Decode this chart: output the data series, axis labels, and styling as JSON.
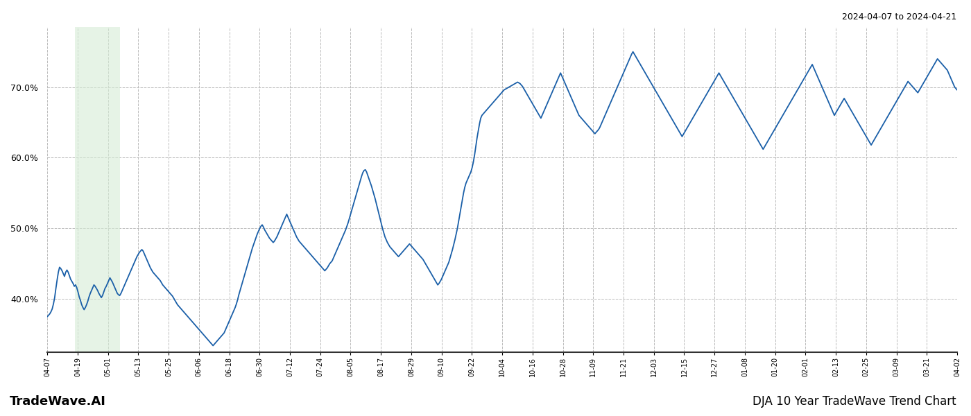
{
  "title_top_right": "2024-04-07 to 2024-04-21",
  "title_bottom_right": "DJA 10 Year TradeWave Trend Chart",
  "title_bottom_left": "TradeWave.AI",
  "line_color": "#1a5fa8",
  "line_width": 1.3,
  "bg_color": "#ffffff",
  "grid_color": "#bbbbbb",
  "grid_linestyle": "--",
  "shade_color": "#d6ecd6",
  "shade_alpha": 0.6,
  "shade_x_start_label": "04-13",
  "shade_x_end_label": "04-25",
  "ylim_min": 0.325,
  "ylim_max": 0.785,
  "yticks": [
    0.4,
    0.5,
    0.6,
    0.7
  ],
  "xtick_labels": [
    "04-07",
    "04-19",
    "05-01",
    "05-13",
    "05-25",
    "06-06",
    "06-18",
    "06-30",
    "07-12",
    "07-24",
    "08-05",
    "08-17",
    "08-29",
    "09-10",
    "09-22",
    "10-04",
    "10-16",
    "10-28",
    "11-09",
    "11-21",
    "12-03",
    "12-15",
    "12-27",
    "01-08",
    "01-20",
    "02-01",
    "02-13",
    "02-25",
    "03-09",
    "03-21",
    "04-02"
  ],
  "y_values": [
    0.375,
    0.377,
    0.379,
    0.382,
    0.386,
    0.393,
    0.402,
    0.415,
    0.427,
    0.438,
    0.445,
    0.443,
    0.44,
    0.436,
    0.432,
    0.438,
    0.441,
    0.438,
    0.433,
    0.428,
    0.425,
    0.422,
    0.418,
    0.42,
    0.416,
    0.41,
    0.403,
    0.398,
    0.392,
    0.388,
    0.385,
    0.388,
    0.392,
    0.397,
    0.403,
    0.408,
    0.412,
    0.416,
    0.42,
    0.418,
    0.415,
    0.412,
    0.408,
    0.405,
    0.402,
    0.405,
    0.41,
    0.415,
    0.418,
    0.422,
    0.426,
    0.43,
    0.427,
    0.424,
    0.42,
    0.416,
    0.412,
    0.408,
    0.406,
    0.405,
    0.408,
    0.412,
    0.416,
    0.42,
    0.424,
    0.428,
    0.432,
    0.436,
    0.44,
    0.444,
    0.448,
    0.452,
    0.456,
    0.46,
    0.463,
    0.466,
    0.468,
    0.47,
    0.468,
    0.464,
    0.46,
    0.456,
    0.452,
    0.448,
    0.444,
    0.441,
    0.438,
    0.436,
    0.434,
    0.432,
    0.43,
    0.428,
    0.426,
    0.423,
    0.42,
    0.418,
    0.416,
    0.414,
    0.412,
    0.41,
    0.408,
    0.406,
    0.404,
    0.401,
    0.398,
    0.395,
    0.392,
    0.39,
    0.388,
    0.386,
    0.384,
    0.382,
    0.38,
    0.378,
    0.376,
    0.374,
    0.372,
    0.37,
    0.368,
    0.366,
    0.364,
    0.362,
    0.36,
    0.358,
    0.356,
    0.354,
    0.352,
    0.35,
    0.348,
    0.346,
    0.344,
    0.342,
    0.34,
    0.338,
    0.336,
    0.334,
    0.336,
    0.338,
    0.34,
    0.342,
    0.344,
    0.346,
    0.348,
    0.35,
    0.352,
    0.356,
    0.36,
    0.364,
    0.368,
    0.372,
    0.376,
    0.38,
    0.384,
    0.388,
    0.393,
    0.399,
    0.406,
    0.412,
    0.418,
    0.424,
    0.43,
    0.436,
    0.442,
    0.448,
    0.454,
    0.46,
    0.466,
    0.472,
    0.477,
    0.482,
    0.487,
    0.492,
    0.496,
    0.5,
    0.503,
    0.505,
    0.502,
    0.498,
    0.495,
    0.492,
    0.489,
    0.486,
    0.484,
    0.482,
    0.48,
    0.482,
    0.485,
    0.488,
    0.492,
    0.496,
    0.5,
    0.504,
    0.508,
    0.512,
    0.516,
    0.52,
    0.516,
    0.512,
    0.508,
    0.504,
    0.5,
    0.496,
    0.492,
    0.488,
    0.485,
    0.482,
    0.48,
    0.478,
    0.476,
    0.474,
    0.472,
    0.47,
    0.468,
    0.466,
    0.464,
    0.462,
    0.46,
    0.458,
    0.456,
    0.454,
    0.452,
    0.45,
    0.448,
    0.446,
    0.444,
    0.442,
    0.44,
    0.442,
    0.444,
    0.447,
    0.45,
    0.452,
    0.454,
    0.458,
    0.462,
    0.466,
    0.47,
    0.474,
    0.478,
    0.482,
    0.486,
    0.49,
    0.494,
    0.498,
    0.503,
    0.508,
    0.514,
    0.52,
    0.526,
    0.532,
    0.538,
    0.544,
    0.55,
    0.556,
    0.562,
    0.568,
    0.574,
    0.579,
    0.582,
    0.583,
    0.58,
    0.575,
    0.57,
    0.565,
    0.56,
    0.554,
    0.548,
    0.542,
    0.535,
    0.528,
    0.521,
    0.514,
    0.507,
    0.5,
    0.494,
    0.488,
    0.484,
    0.48,
    0.477,
    0.474,
    0.472,
    0.47,
    0.468,
    0.466,
    0.464,
    0.462,
    0.46,
    0.462,
    0.464,
    0.466,
    0.468,
    0.47,
    0.472,
    0.474,
    0.476,
    0.478,
    0.476,
    0.474,
    0.472,
    0.47,
    0.468,
    0.466,
    0.464,
    0.462,
    0.46,
    0.458,
    0.456,
    0.453,
    0.45,
    0.447,
    0.444,
    0.441,
    0.438,
    0.435,
    0.432,
    0.429,
    0.426,
    0.423,
    0.42,
    0.422,
    0.425,
    0.428,
    0.432,
    0.436,
    0.44,
    0.444,
    0.448,
    0.452,
    0.458,
    0.464,
    0.47,
    0.477,
    0.484,
    0.492,
    0.5,
    0.51,
    0.52,
    0.53,
    0.54,
    0.55,
    0.558,
    0.564,
    0.568,
    0.572,
    0.576,
    0.58,
    0.586,
    0.594,
    0.604,
    0.616,
    0.628,
    0.638,
    0.648,
    0.656,
    0.66,
    0.662,
    0.664,
    0.666,
    0.668,
    0.67,
    0.672,
    0.674,
    0.676,
    0.678,
    0.68,
    0.682,
    0.684,
    0.686,
    0.688,
    0.69,
    0.692,
    0.694,
    0.696,
    0.697,
    0.698,
    0.699,
    0.7,
    0.701,
    0.702,
    0.703,
    0.704,
    0.705,
    0.706,
    0.707,
    0.706,
    0.705,
    0.703,
    0.701,
    0.698,
    0.695,
    0.692,
    0.689,
    0.686,
    0.683,
    0.68,
    0.677,
    0.674,
    0.671,
    0.668,
    0.665,
    0.662,
    0.659,
    0.656,
    0.66,
    0.664,
    0.668,
    0.672,
    0.676,
    0.68,
    0.684,
    0.688,
    0.692,
    0.696,
    0.7,
    0.704,
    0.708,
    0.712,
    0.716,
    0.72,
    0.716,
    0.712,
    0.708,
    0.704,
    0.7,
    0.696,
    0.692,
    0.688,
    0.684,
    0.68,
    0.676,
    0.672,
    0.668,
    0.664,
    0.66,
    0.658,
    0.656,
    0.654,
    0.652,
    0.65,
    0.648,
    0.646,
    0.644,
    0.642,
    0.64,
    0.638,
    0.636,
    0.634,
    0.636,
    0.638,
    0.64,
    0.643,
    0.647,
    0.651,
    0.655,
    0.659,
    0.663,
    0.667,
    0.671,
    0.675,
    0.679,
    0.683,
    0.687,
    0.691,
    0.695,
    0.699,
    0.703,
    0.707,
    0.711,
    0.715,
    0.719,
    0.723,
    0.727,
    0.731,
    0.735,
    0.739,
    0.743,
    0.747,
    0.75,
    0.747,
    0.744,
    0.741,
    0.738,
    0.735,
    0.732,
    0.729,
    0.726,
    0.723,
    0.72,
    0.717,
    0.714,
    0.711,
    0.708,
    0.705,
    0.702,
    0.699,
    0.696,
    0.693,
    0.69,
    0.687,
    0.684,
    0.681,
    0.678,
    0.675,
    0.672,
    0.669,
    0.666,
    0.663,
    0.66,
    0.657,
    0.654,
    0.651,
    0.648,
    0.645,
    0.642,
    0.639,
    0.636,
    0.633,
    0.63,
    0.633,
    0.636,
    0.639,
    0.642,
    0.645,
    0.648,
    0.651,
    0.654,
    0.657,
    0.66,
    0.663,
    0.666,
    0.669,
    0.672,
    0.675,
    0.678,
    0.681,
    0.684,
    0.687,
    0.69,
    0.693,
    0.696,
    0.699,
    0.702,
    0.705,
    0.708,
    0.711,
    0.714,
    0.717,
    0.72,
    0.717,
    0.714,
    0.711,
    0.708,
    0.705,
    0.702,
    0.699,
    0.696,
    0.693,
    0.69,
    0.687,
    0.684,
    0.681,
    0.678,
    0.675,
    0.672,
    0.669,
    0.666,
    0.663,
    0.66,
    0.657,
    0.654,
    0.651,
    0.648,
    0.645,
    0.642,
    0.639,
    0.636,
    0.633,
    0.63,
    0.627,
    0.624,
    0.621,
    0.618,
    0.615,
    0.612,
    0.615,
    0.618,
    0.621,
    0.624,
    0.627,
    0.63,
    0.633,
    0.636,
    0.639,
    0.642,
    0.645,
    0.648,
    0.651,
    0.654,
    0.657,
    0.66,
    0.663,
    0.666,
    0.669,
    0.672,
    0.675,
    0.678,
    0.681,
    0.684,
    0.687,
    0.69,
    0.693,
    0.696,
    0.699,
    0.702,
    0.705,
    0.708,
    0.711,
    0.714,
    0.717,
    0.72,
    0.723,
    0.726,
    0.729,
    0.732,
    0.728,
    0.724,
    0.72,
    0.716,
    0.712,
    0.708,
    0.704,
    0.7,
    0.696,
    0.692,
    0.688,
    0.684,
    0.68,
    0.676,
    0.672,
    0.668,
    0.664,
    0.66,
    0.663,
    0.666,
    0.669,
    0.672,
    0.675,
    0.678,
    0.681,
    0.684,
    0.681,
    0.678,
    0.675,
    0.672,
    0.669,
    0.666,
    0.663,
    0.66,
    0.657,
    0.654,
    0.651,
    0.648,
    0.645,
    0.642,
    0.639,
    0.636,
    0.633,
    0.63,
    0.627,
    0.624,
    0.621,
    0.618,
    0.621,
    0.624,
    0.627,
    0.63,
    0.633,
    0.636,
    0.639,
    0.642,
    0.645,
    0.648,
    0.651,
    0.654,
    0.657,
    0.66,
    0.663,
    0.666,
    0.669,
    0.672,
    0.675,
    0.678,
    0.681,
    0.684,
    0.687,
    0.69,
    0.693,
    0.696,
    0.699,
    0.702,
    0.705,
    0.708,
    0.706,
    0.704,
    0.702,
    0.7,
    0.698,
    0.696,
    0.694,
    0.692,
    0.695,
    0.698,
    0.701,
    0.704,
    0.707,
    0.71,
    0.713,
    0.716,
    0.719,
    0.722,
    0.725,
    0.728,
    0.731,
    0.734,
    0.737,
    0.74,
    0.738,
    0.736,
    0.734,
    0.732,
    0.73,
    0.728,
    0.726,
    0.724,
    0.72,
    0.716,
    0.712,
    0.708,
    0.704,
    0.7,
    0.698,
    0.696
  ]
}
